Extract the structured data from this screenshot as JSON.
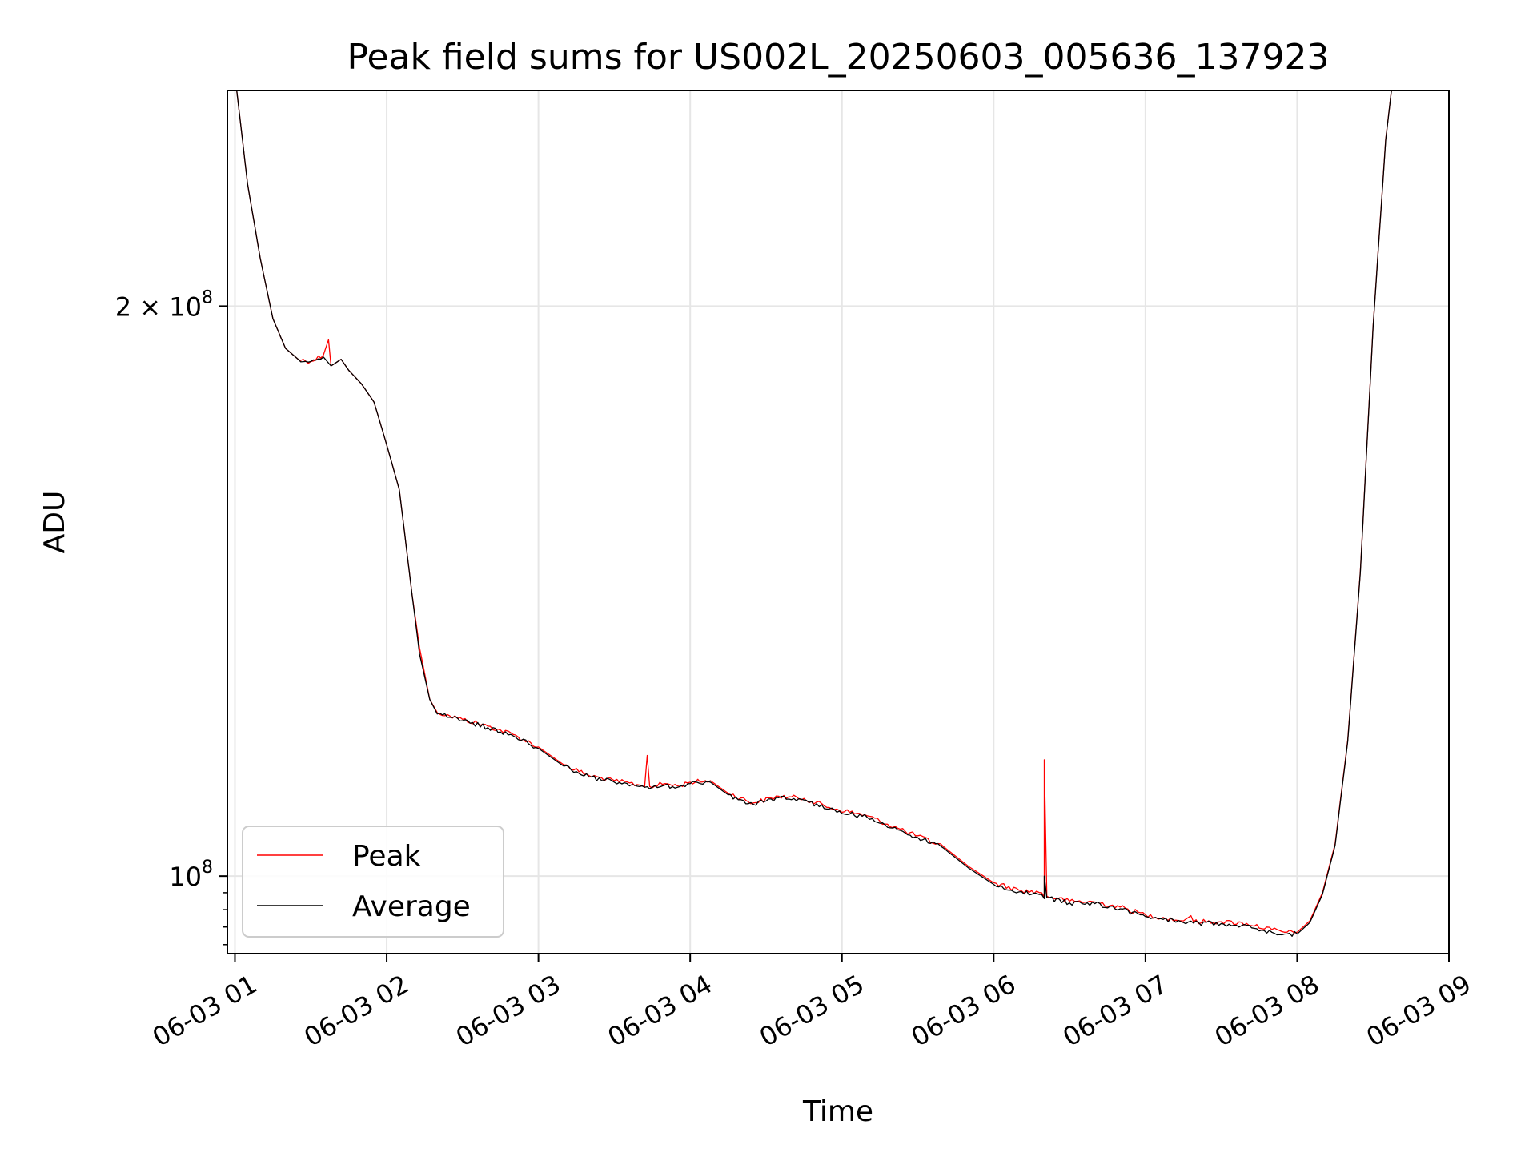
{
  "chart_data": {
    "type": "line",
    "title": "Peak field sums for US002L_20250603_005636_137923",
    "xlabel": "Time",
    "ylabel": "ADU",
    "y_scale": "log",
    "ylim": [
      91000000,
      260000000
    ],
    "xlim": [
      "06-03 00:57",
      "06-03 09:00"
    ],
    "grid": true,
    "legend_position": "lower-left",
    "x_ticks": [
      "06-03 01",
      "06-03 02",
      "06-03 03",
      "06-03 04",
      "06-03 05",
      "06-03 06",
      "06-03 07",
      "06-03 08",
      "06-03 09"
    ],
    "x_tick_times": [
      "06-03 01:00",
      "06-03 02:00",
      "06-03 03:00",
      "06-03 04:00",
      "06-03 05:00",
      "06-03 06:00",
      "06-03 07:00",
      "06-03 08:00",
      "06-03 09:00"
    ],
    "y_ticks": [
      {
        "value": 100000000,
        "base": "10",
        "exp": "8",
        "coef": ""
      },
      {
        "value": 200000000,
        "base": "10",
        "exp": "8",
        "coef": "2 × "
      }
    ],
    "series": [
      {
        "name": "Peak",
        "color": "#ff0000",
        "points": [
          [
            "06-03 01:00",
            265000000
          ],
          [
            "06-03 01:05",
            232000000
          ],
          [
            "06-03 01:10",
            212000000
          ],
          [
            "06-03 01:15",
            197000000
          ],
          [
            "06-03 01:20",
            190000000
          ],
          [
            "06-03 01:25",
            187500000
          ],
          [
            "06-03 01:30",
            187000000
          ],
          [
            "06-03 01:35",
            188500000
          ],
          [
            "06-03 01:37",
            192000000
          ],
          [
            "06-03 01:38",
            186000000
          ],
          [
            "06-03 01:42",
            187500000
          ],
          [
            "06-03 01:45",
            185000000
          ],
          [
            "06-03 01:50",
            182000000
          ],
          [
            "06-03 01:55",
            178000000
          ],
          [
            "06-03 02:00",
            169000000
          ],
          [
            "06-03 02:05",
            160000000
          ],
          [
            "06-03 02:10",
            141000000
          ],
          [
            "06-03 02:13",
            132000000
          ],
          [
            "06-03 02:15",
            128000000
          ],
          [
            "06-03 02:17",
            124000000
          ],
          [
            "06-03 02:20",
            122000000
          ],
          [
            "06-03 02:25",
            121500000
          ],
          [
            "06-03 02:30",
            121000000
          ],
          [
            "06-03 02:40",
            120000000
          ],
          [
            "06-03 02:50",
            118800000
          ],
          [
            "06-03 03:00",
            117000000
          ],
          [
            "06-03 03:10",
            114500000
          ],
          [
            "06-03 03:20",
            113000000
          ],
          [
            "06-03 03:30",
            112300000
          ],
          [
            "06-03 03:40",
            111700000
          ],
          [
            "06-03 03:42",
            111500000
          ],
          [
            "06-03 03:43",
            115800000
          ],
          [
            "06-03 03:44",
            111500000
          ],
          [
            "06-03 03:50",
            111900000
          ],
          [
            "06-03 03:55",
            111600000
          ],
          [
            "06-03 04:00",
            112100000
          ],
          [
            "06-03 04:08",
            112300000
          ],
          [
            "06-03 04:15",
            110600000
          ],
          [
            "06-03 04:25",
            109300000
          ],
          [
            "06-03 04:35",
            110200000
          ],
          [
            "06-03 04:45",
            109900000
          ],
          [
            "06-03 04:55",
            108700000
          ],
          [
            "06-03 05:10",
            107600000
          ],
          [
            "06-03 05:25",
            105600000
          ],
          [
            "06-03 05:40",
            103700000
          ],
          [
            "06-03 05:50",
            101200000
          ],
          [
            "06-03 06:00",
            99200000
          ],
          [
            "06-03 06:10",
            98300000
          ],
          [
            "06-03 06:19",
            98000000
          ],
          [
            "06-03 06:20",
            97500000
          ],
          [
            "06-03 06:20",
            115200000
          ],
          [
            "06-03 06:21",
            97600000
          ],
          [
            "06-03 06:30",
            97000000
          ],
          [
            "06-03 06:40",
            96900000
          ],
          [
            "06-03 06:50",
            96300000
          ],
          [
            "06-03 07:00",
            95400000
          ],
          [
            "06-03 07:15",
            94700000
          ],
          [
            "06-03 07:18",
            95300000
          ],
          [
            "06-03 07:19",
            94600000
          ],
          [
            "06-03 07:30",
            94600000
          ],
          [
            "06-03 07:40",
            94400000
          ],
          [
            "06-03 07:50",
            93700000
          ],
          [
            "06-03 07:55",
            93400000
          ],
          [
            "06-03 08:00",
            93400000
          ],
          [
            "06-03 08:05",
            94700000
          ],
          [
            "06-03 08:10",
            98000000
          ],
          [
            "06-03 08:15",
            104000000
          ],
          [
            "06-03 08:20",
            118000000
          ],
          [
            "06-03 08:25",
            145000000
          ],
          [
            "06-03 08:30",
            195000000
          ],
          [
            "06-03 08:35",
            245000000
          ],
          [
            "06-03 08:38",
            265000000
          ]
        ]
      },
      {
        "name": "Average",
        "color": "#000000",
        "points": [
          [
            "06-03 01:00",
            265000000
          ],
          [
            "06-03 01:05",
            232000000
          ],
          [
            "06-03 01:10",
            212000000
          ],
          [
            "06-03 01:15",
            197000000
          ],
          [
            "06-03 01:20",
            190000000
          ],
          [
            "06-03 01:25",
            187500000
          ],
          [
            "06-03 01:30",
            187000000
          ],
          [
            "06-03 01:35",
            188000000
          ],
          [
            "06-03 01:38",
            186000000
          ],
          [
            "06-03 01:42",
            187500000
          ],
          [
            "06-03 01:45",
            185000000
          ],
          [
            "06-03 01:50",
            182000000
          ],
          [
            "06-03 01:55",
            178000000
          ],
          [
            "06-03 02:00",
            169000000
          ],
          [
            "06-03 02:05",
            160000000
          ],
          [
            "06-03 02:10",
            141000000
          ],
          [
            "06-03 02:13",
            131000000
          ],
          [
            "06-03 02:15",
            127500000
          ],
          [
            "06-03 02:17",
            124000000
          ],
          [
            "06-03 02:20",
            121800000
          ],
          [
            "06-03 02:25",
            121300000
          ],
          [
            "06-03 02:30",
            120800000
          ],
          [
            "06-03 02:40",
            119800000
          ],
          [
            "06-03 02:50",
            118600000
          ],
          [
            "06-03 03:00",
            116800000
          ],
          [
            "06-03 03:10",
            114300000
          ],
          [
            "06-03 03:20",
            112800000
          ],
          [
            "06-03 03:30",
            112100000
          ],
          [
            "06-03 03:40",
            111500000
          ],
          [
            "06-03 03:44",
            111200000
          ],
          [
            "06-03 03:50",
            111700000
          ],
          [
            "06-03 03:55",
            111400000
          ],
          [
            "06-03 04:00",
            111900000
          ],
          [
            "06-03 04:08",
            112100000
          ],
          [
            "06-03 04:15",
            110400000
          ],
          [
            "06-03 04:25",
            109100000
          ],
          [
            "06-03 04:35",
            110000000
          ],
          [
            "06-03 04:45",
            109700000
          ],
          [
            "06-03 04:55",
            108500000
          ],
          [
            "06-03 05:10",
            107400000
          ],
          [
            "06-03 05:25",
            105400000
          ],
          [
            "06-03 05:40",
            103500000
          ],
          [
            "06-03 05:50",
            101000000
          ],
          [
            "06-03 06:00",
            99000000
          ],
          [
            "06-03 06:10",
            98100000
          ],
          [
            "06-03 06:19",
            97800000
          ],
          [
            "06-03 06:20",
            97300000
          ],
          [
            "06-03 06:20",
            100000000
          ],
          [
            "06-03 06:21",
            97400000
          ],
          [
            "06-03 06:30",
            96800000
          ],
          [
            "06-03 06:40",
            96700000
          ],
          [
            "06-03 06:50",
            96100000
          ],
          [
            "06-03 07:00",
            95200000
          ],
          [
            "06-03 07:15",
            94500000
          ],
          [
            "06-03 07:30",
            94400000
          ],
          [
            "06-03 07:40",
            94200000
          ],
          [
            "06-03 07:50",
            93400000
          ],
          [
            "06-03 07:55",
            93200000
          ],
          [
            "06-03 08:00",
            93200000
          ],
          [
            "06-03 08:05",
            94500000
          ],
          [
            "06-03 08:10",
            97800000
          ],
          [
            "06-03 08:15",
            103800000
          ],
          [
            "06-03 08:20",
            117800000
          ],
          [
            "06-03 08:25",
            144800000
          ],
          [
            "06-03 08:30",
            194800000
          ],
          [
            "06-03 08:35",
            244800000
          ],
          [
            "06-03 08:38",
            265000000
          ]
        ]
      }
    ]
  }
}
